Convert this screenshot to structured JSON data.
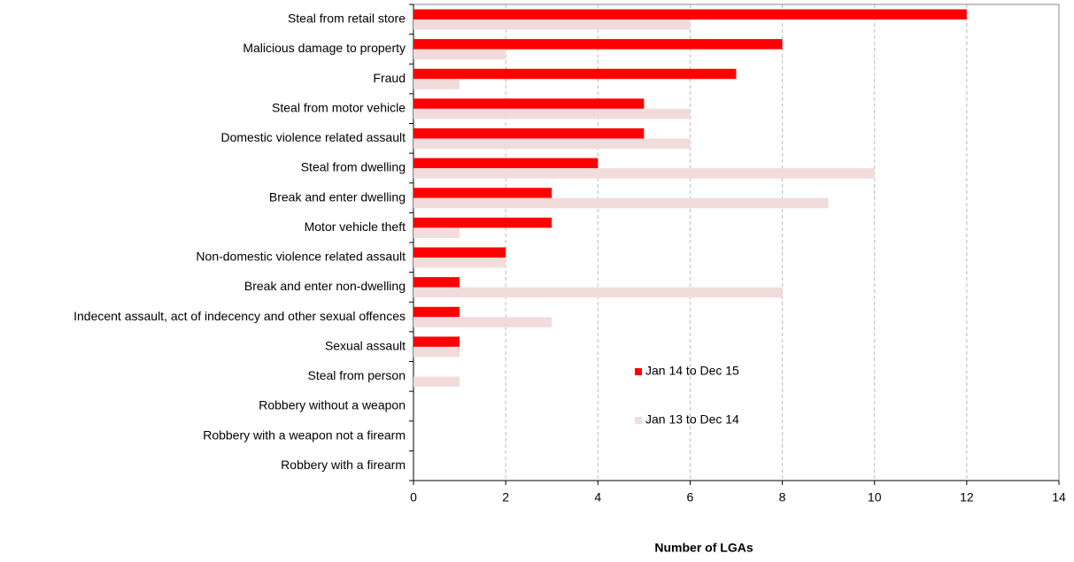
{
  "chart_data": {
    "type": "hbar",
    "categories": [
      "Steal from retail store",
      "Malicious damage to property",
      "Fraud",
      "Steal from motor vehicle",
      "Domestic violence related assault",
      "Steal from dwelling",
      "Break and enter dwelling",
      "Motor vehicle theft",
      "Non-domestic violence related assault",
      "Break and enter non-dwelling",
      "Indecent assault, act of indecency and other sexual offences",
      "Sexual assault",
      "Steal from person",
      "Robbery without a weapon",
      "Robbery with a weapon not a firearm",
      "Robbery with a firearm"
    ],
    "series": [
      {
        "name": "Jan 14 to Dec 15",
        "color": "#ff0000",
        "values": [
          12,
          8,
          7,
          5,
          5,
          4,
          3,
          3,
          2,
          1,
          1,
          1,
          0,
          0,
          0,
          0
        ]
      },
      {
        "name": "Jan 13 to Dec 14",
        "color": "#f2dcdb",
        "values": [
          6,
          2,
          1,
          6,
          6,
          10,
          9,
          1,
          2,
          8,
          3,
          1,
          1,
          0,
          0,
          0
        ]
      }
    ],
    "xlabel": "Number of LGAs",
    "xlim": [
      0,
      14
    ],
    "xticks": [
      0,
      2,
      4,
      6,
      8,
      10,
      12,
      14
    ],
    "grid": true,
    "legend": "inside-center"
  }
}
